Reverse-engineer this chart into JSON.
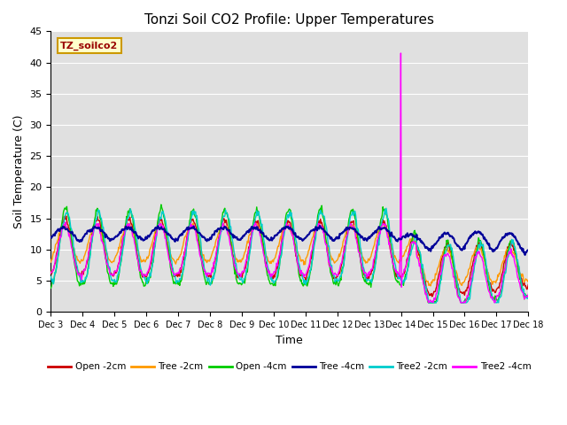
{
  "title": "Tonzi Soil CO2 Profile: Upper Temperatures",
  "ylabel": "Soil Temperature (C)",
  "xlabel": "Time",
  "annotation_label": "TZ_soilco2",
  "ylim": [
    0,
    45
  ],
  "x_tick_labels": [
    "Dec 3",
    "Dec 4",
    "Dec 5",
    "Dec 6",
    "Dec 7",
    "Dec 8",
    "Dec 9",
    "Dec 10",
    "Dec 11",
    "Dec 12",
    "Dec 13",
    "Dec 14",
    "Dec 15",
    "Dec 16",
    "Dec 17",
    "Dec 18"
  ],
  "background_color": "#e0e0e0",
  "grid_color": "#ffffff",
  "series": [
    {
      "label": "Open -2cm",
      "color": "#cc0000"
    },
    {
      "label": "Tree -2cm",
      "color": "#ff9900"
    },
    {
      "label": "Open -4cm",
      "color": "#00cc00"
    },
    {
      "label": "Tree -4cm",
      "color": "#000099"
    },
    {
      "label": "Tree2 -2cm",
      "color": "#00cccc"
    },
    {
      "label": "Tree2 -4cm",
      "color": "#ff00ff"
    }
  ]
}
